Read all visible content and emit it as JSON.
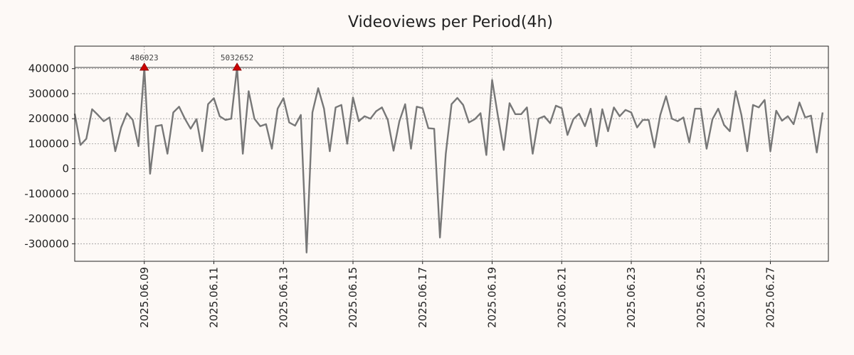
{
  "chart_data": {
    "type": "line",
    "title": "Videoviews per Period(4h)",
    "xlabel": "",
    "ylabel": "",
    "x_start": "2025.06.07 00:00",
    "x_end": "2025.06.28 16:00",
    "period_hours": 4,
    "ylim": [
      -370000,
      490000
    ],
    "yticks": [
      -300000,
      -200000,
      -100000,
      0,
      100000,
      200000,
      300000,
      400000
    ],
    "yticklabels": [
      "-300000",
      "-200000",
      "-100000",
      "0",
      "100000",
      "200000",
      "300000",
      "400000"
    ],
    "xticks": [
      "2025.06.09",
      "2025.06.11",
      "2025.06.13",
      "2025.06.15",
      "2025.06.17",
      "2025.06.19",
      "2025.06.21",
      "2025.06.23",
      "2025.06.25",
      "2025.06.27"
    ],
    "grid": true,
    "series": [
      {
        "name": "",
        "color": "#777777",
        "values": [
          220000,
          95000,
          120000,
          238000,
          215000,
          190000,
          205000,
          70000,
          165000,
          222000,
          195000,
          90000,
          405000,
          -20000,
          170000,
          175000,
          60000,
          225000,
          248000,
          200000,
          160000,
          198000,
          70000,
          258000,
          282000,
          210000,
          195000,
          200000,
          405000,
          60000,
          310000,
          200000,
          170000,
          178000,
          80000,
          240000,
          282000,
          185000,
          172000,
          215000,
          -335000,
          225000,
          322000,
          240000,
          70000,
          245000,
          255000,
          100000,
          285000,
          190000,
          210000,
          200000,
          230000,
          245000,
          195000,
          72000,
          190000,
          258000,
          80000,
          248000,
          242000,
          162000,
          160000,
          -275000,
          60000,
          258000,
          283000,
          255000,
          185000,
          198000,
          222000,
          55000,
          355000,
          210000,
          75000,
          262000,
          218000,
          218000,
          245000,
          60000,
          200000,
          210000,
          182000,
          252000,
          242000,
          135000,
          198000,
          220000,
          170000,
          240000,
          90000,
          238000,
          150000,
          245000,
          210000,
          235000,
          225000,
          165000,
          195000,
          195000,
          85000,
          215000,
          290000,
          200000,
          190000,
          205000,
          105000,
          240000,
          240000,
          80000,
          198000,
          240000,
          175000,
          150000,
          310000,
          215000,
          70000,
          255000,
          245000,
          275000,
          70000,
          232000,
          192000,
          210000,
          178000,
          265000,
          205000,
          212000,
          65000,
          225000
        ]
      }
    ],
    "reference_line": 405000,
    "annotations": [
      {
        "label": "486023",
        "index": 12,
        "color": "#cc0000"
      },
      {
        "label": "5032652",
        "index": 28,
        "color": "#cc0000"
      }
    ]
  }
}
